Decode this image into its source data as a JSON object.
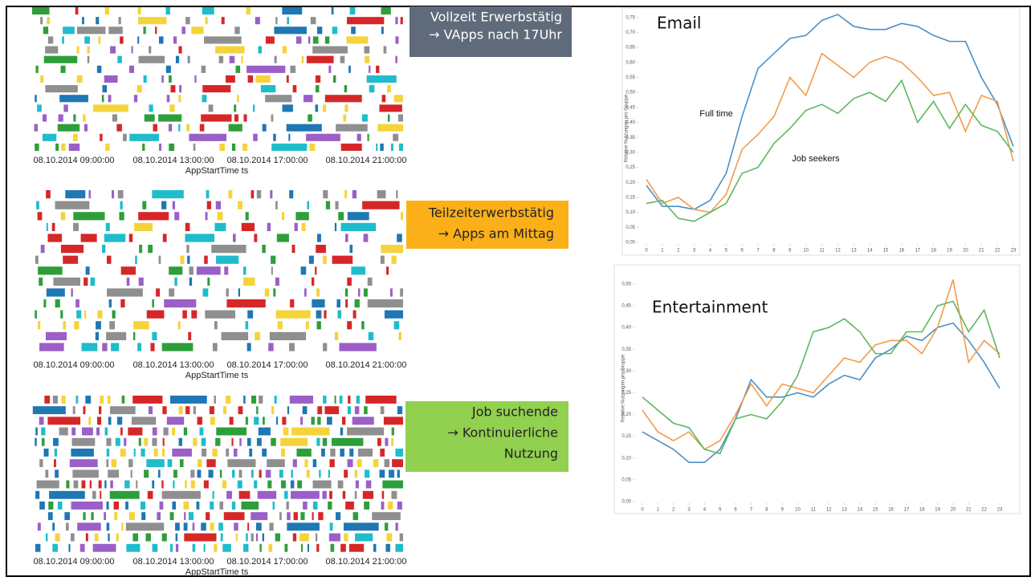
{
  "timelines": [
    {
      "x_ticks": [
        "08.10.2014 09:00:00",
        "08.10.2014 13:00:00",
        "08.10.2014 17:00:00",
        "08.10.2014 21:00:00"
      ],
      "x_label": "AppStartTime ts",
      "callout": [
        "Vollzeit  Erwerbstätig",
        "→ VApps nach 17Uhr"
      ]
    },
    {
      "x_ticks": [
        "08.10.2014 09:00:00",
        "08.10.2014 13:00:00",
        "08.10.2014 17:00:00",
        "08.10.2014 21:00:00"
      ],
      "x_label": "AppStartTime ts",
      "callout": [
        "Teilzeiterwerbstätig",
        "→ Apps am Mittag"
      ]
    },
    {
      "x_ticks": [
        "08.10.2014 09:00:00",
        "08.10.2014 13:00:00",
        "08.10.2014 17:00:00",
        "08.10.2014 21:00:00"
      ],
      "x_label": "AppStartTime ts",
      "callout": [
        "Job suchende",
        "→  Kontinuierliche",
        "Nutzung"
      ]
    }
  ],
  "chart_data": [
    {
      "type": "line",
      "title": "Email",
      "y_label": "Relative Nutzungen pro Gruppe",
      "annotations": [
        "Full time",
        "Job seekers"
      ],
      "x": [
        0,
        1,
        2,
        3,
        4,
        5,
        6,
        7,
        8,
        9,
        10,
        11,
        12,
        13,
        14,
        15,
        16,
        17,
        18,
        19,
        20,
        21,
        22,
        23
      ],
      "xlim": [
        0,
        23
      ],
      "ylim": [
        0,
        0.76
      ],
      "yticks": [
        {
          "value": 0,
          "label": "0,00"
        },
        {
          "value": 0.05,
          "label": "0,05"
        },
        {
          "value": 0.1,
          "label": "0,10"
        },
        {
          "value": 0.15,
          "label": "0,15"
        },
        {
          "value": 0.2,
          "label": "0,20"
        },
        {
          "value": 0.25,
          "label": "0,25"
        },
        {
          "value": 0.3,
          "label": "0,30"
        },
        {
          "value": 0.35,
          "label": "0,35"
        },
        {
          "value": 0.4,
          "label": "0,40"
        },
        {
          "value": 0.45,
          "label": "0,45"
        },
        {
          "value": 0.5,
          "label": "0,50"
        },
        {
          "value": 0.55,
          "label": "0,55"
        },
        {
          "value": 0.6,
          "label": "0,60"
        },
        {
          "value": 0.65,
          "label": "0,65"
        },
        {
          "value": 0.7,
          "label": "0,70"
        },
        {
          "value": 0.75,
          "label": "0,75"
        }
      ],
      "series": [
        {
          "color": "#4c8fc4",
          "values": [
            0.19,
            0.12,
            0.12,
            0.11,
            0.14,
            0.23,
            0.42,
            0.58,
            0.63,
            0.68,
            0.69,
            0.74,
            0.76,
            0.72,
            0.71,
            0.71,
            0.73,
            0.72,
            0.69,
            0.67,
            0.67,
            0.55,
            0.46,
            0.32
          ]
        },
        {
          "color": "#f39b4a",
          "values": [
            0.21,
            0.13,
            0.15,
            0.11,
            0.1,
            0.16,
            0.31,
            0.36,
            0.42,
            0.55,
            0.49,
            0.63,
            0.59,
            0.55,
            0.6,
            0.62,
            0.6,
            0.55,
            0.49,
            0.5,
            0.37,
            0.49,
            0.47,
            0.27
          ]
        },
        {
          "color": "#5cb85c",
          "values": [
            0.13,
            0.14,
            0.08,
            0.07,
            0.1,
            0.13,
            0.23,
            0.25,
            0.33,
            0.38,
            0.44,
            0.46,
            0.43,
            0.48,
            0.5,
            0.47,
            0.54,
            0.4,
            0.47,
            0.38,
            0.46,
            0.39,
            0.37,
            0.3
          ]
        }
      ]
    },
    {
      "type": "line",
      "title": "Entertainment",
      "y_label": "Relative Nutzungen pro Gruppe",
      "x": [
        0,
        1,
        2,
        3,
        4,
        5,
        6,
        7,
        8,
        9,
        10,
        11,
        12,
        13,
        14,
        15,
        16,
        17,
        18,
        19,
        20,
        21,
        22,
        23
      ],
      "xlim": [
        0,
        23
      ],
      "ylim": [
        0,
        0.52
      ],
      "yticks": [
        {
          "value": 0,
          "label": "0,00"
        },
        {
          "value": 0.05,
          "label": "0,05"
        },
        {
          "value": 0.1,
          "label": "0,10"
        },
        {
          "value": 0.15,
          "label": "0,15"
        },
        {
          "value": 0.2,
          "label": "0,20"
        },
        {
          "value": 0.25,
          "label": "0,25"
        },
        {
          "value": 0.3,
          "label": "0,30"
        },
        {
          "value": 0.35,
          "label": "0,35"
        },
        {
          "value": 0.4,
          "label": "0,40"
        },
        {
          "value": 0.45,
          "label": "0,45"
        },
        {
          "value": 0.5,
          "label": "0,50"
        }
      ],
      "series": [
        {
          "color": "#4c8fc4",
          "values": [
            0.16,
            0.14,
            0.12,
            0.09,
            0.09,
            0.12,
            0.19,
            0.28,
            0.24,
            0.24,
            0.25,
            0.24,
            0.27,
            0.29,
            0.28,
            0.33,
            0.35,
            0.38,
            0.37,
            0.4,
            0.41,
            0.37,
            0.32,
            0.26
          ]
        },
        {
          "color": "#f39b4a",
          "values": [
            0.21,
            0.16,
            0.14,
            0.16,
            0.12,
            0.14,
            0.2,
            0.27,
            0.22,
            0.27,
            0.26,
            0.25,
            0.29,
            0.33,
            0.32,
            0.36,
            0.37,
            0.37,
            0.34,
            0.4,
            0.51,
            0.32,
            0.37,
            0.34
          ]
        },
        {
          "color": "#5cb85c",
          "values": [
            0.24,
            0.21,
            0.18,
            0.17,
            0.12,
            0.11,
            0.19,
            0.2,
            0.19,
            0.23,
            0.29,
            0.39,
            0.4,
            0.42,
            0.39,
            0.34,
            0.34,
            0.39,
            0.39,
            0.45,
            0.46,
            0.39,
            0.44,
            0.33
          ]
        }
      ]
    }
  ]
}
